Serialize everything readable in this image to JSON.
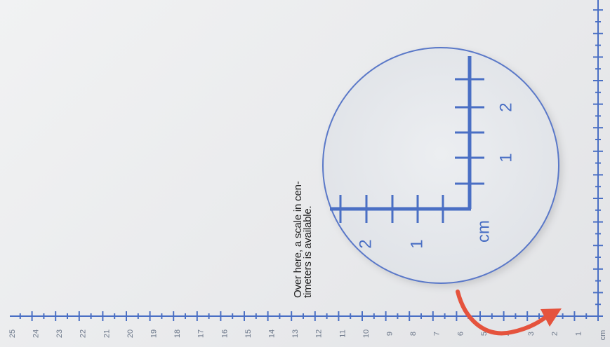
{
  "ruler": {
    "unit_label": "cm",
    "bottom_scale_labels": [
      "25",
      "24",
      "23",
      "22",
      "21",
      "20",
      "19",
      "18",
      "17",
      "16",
      "15",
      "14",
      "13",
      "12",
      "11",
      "10",
      "9",
      "8",
      "7",
      "6",
      "5",
      "4",
      "3",
      "2",
      "1"
    ],
    "line_color": "#4a6fc4"
  },
  "magnifier": {
    "unit_label": "cm",
    "scale_labels_vertical": [
      "1",
      "2"
    ],
    "scale_labels_horizontal": [
      "1",
      "2"
    ]
  },
  "caption": {
    "line1": "Over here, a scale in cen-",
    "line2": "timeters is available."
  },
  "colors": {
    "arrow": "#e5533d",
    "scale": "#4a6fc4",
    "circle": "#5a78c8"
  },
  "icons": [
    "curved-arrow-icon"
  ]
}
